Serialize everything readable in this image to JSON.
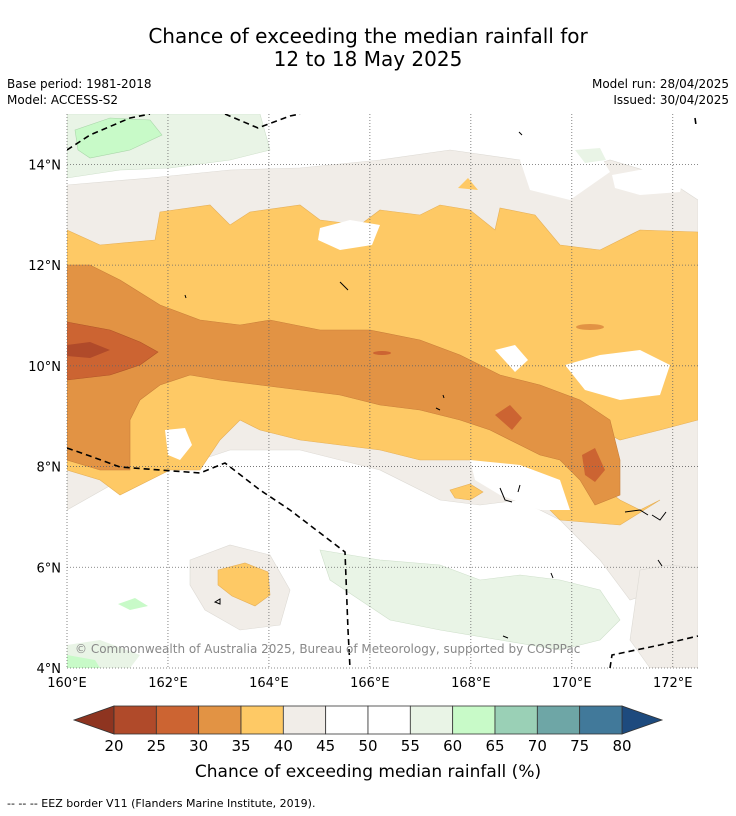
{
  "title": {
    "line1": "Chance of exceeding the median rainfall for",
    "line2": "12 to 18 May 2025"
  },
  "meta": {
    "base_period": "Base period: 1981-2018",
    "model": "Model: ACCESS-S2",
    "model_run": "Model run: 28/04/2025",
    "issued": "Issued: 30/04/2025"
  },
  "axes": {
    "lon_ticks": [
      "160°E",
      "162°E",
      "164°E",
      "166°E",
      "168°E",
      "170°E",
      "172°E"
    ],
    "lat_ticks": [
      "4°N",
      "6°N",
      "8°N",
      "10°N",
      "12°N",
      "14°N"
    ],
    "lon_range": [
      160,
      172.5
    ],
    "lat_range": [
      4,
      15
    ]
  },
  "copyright": "© Commonwealth of Australia 2025, Bureau of Meteorology, supported by COSPPac",
  "colorbar": {
    "label": "Chance of exceeding median rainfall (%)",
    "ticks": [
      "20",
      "25",
      "30",
      "35",
      "40",
      "45",
      "50",
      "55",
      "60",
      "65",
      "70",
      "75",
      "80"
    ],
    "under_color": "#8e3420",
    "over_color": "#1d4a7e",
    "colors": [
      "#b04a2a",
      "#cc6432",
      "#e29344",
      "#fec965",
      "#f1ede8",
      "#ffffff",
      "#ffffff",
      "#e9f4e6",
      "#c8fac8",
      "#9ad0b6",
      "#6ea6a6",
      "#41799a"
    ]
  },
  "footnote": "--  --  -- EEZ border V11 (Flanders Marine Institute, 2019)."
}
